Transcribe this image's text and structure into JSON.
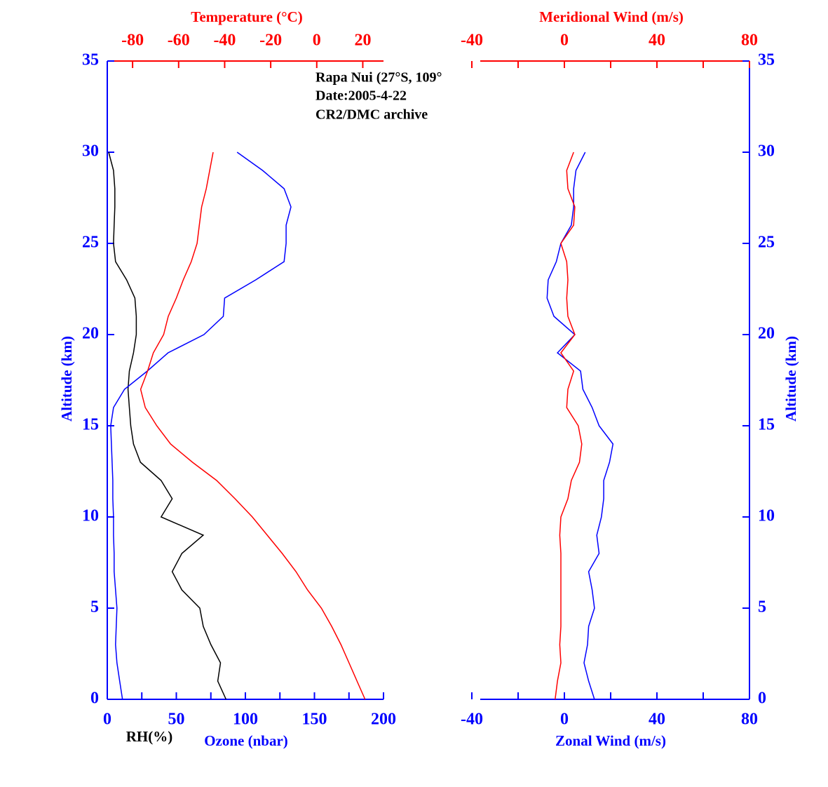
{
  "chart_data": [
    {
      "type": "line",
      "yaxis_side": "left",
      "annotations": [
        "Rapa Nui (27°S, 109°",
        "Date:2005-4-22",
        "CR2/DMC archive"
      ],
      "ylabel": "Altitude (km)",
      "ylim": [
        0,
        35
      ],
      "yticks": [
        0,
        5,
        10,
        15,
        20,
        25,
        30,
        35
      ],
      "xlim": [
        0,
        200
      ],
      "xticks": [
        0,
        50,
        100,
        150,
        200
      ],
      "xminorticks": [
        25,
        75,
        125,
        175
      ],
      "x2lim": [
        -91,
        29
      ],
      "x2ticks": [
        -80,
        -60,
        -40,
        -20,
        0,
        20
      ],
      "altitude": [
        0,
        1,
        2,
        3,
        4,
        5,
        6,
        7,
        8,
        9,
        10,
        11,
        12,
        13,
        14,
        15,
        16,
        17,
        18,
        19,
        20,
        21,
        22,
        23,
        24,
        25,
        26,
        27,
        28,
        29,
        30
      ],
      "series": [
        {
          "name": "RH(%)",
          "color": "#000000",
          "axis": "x",
          "values": [
            86,
            80,
            82,
            75,
            69.5,
            67,
            54,
            47,
            54,
            69.5,
            39,
            47,
            39,
            24,
            19,
            17,
            16,
            15,
            16,
            19,
            21,
            21,
            20,
            14,
            6,
            4.5,
            5,
            5.5,
            5.5,
            4.5,
            1
          ]
        },
        {
          "name": "Ozone (nbar)",
          "color": "#0000ff",
          "axis": "x",
          "values": [
            11,
            9,
            7,
            6,
            6.5,
            7,
            6,
            5,
            5,
            4.5,
            4.5,
            4,
            4,
            3.5,
            3,
            2.5,
            4.5,
            12.5,
            29,
            44,
            70,
            84,
            85,
            107.5,
            128,
            129.5,
            129.5,
            133,
            128,
            112.5,
            94
          ]
        },
        {
          "name": "Temperature (°C)",
          "color": "#ff0000",
          "axis": "x2",
          "values": [
            21,
            17.5,
            14,
            10.5,
            6.5,
            2,
            -4,
            -9,
            -15,
            -21.5,
            -28,
            -35.5,
            -43.5,
            -54,
            -63.5,
            -69.5,
            -74.5,
            -76.5,
            -73.5,
            -71,
            -66.5,
            -64.5,
            -61,
            -58,
            -54.5,
            -52,
            -51,
            -50,
            -48,
            -46.5,
            -45
          ]
        }
      ]
    },
    {
      "type": "line",
      "yaxis_side": "right",
      "ylabel": "Altitude (km)",
      "ylim": [
        0,
        35
      ],
      "yticks": [
        0,
        5,
        10,
        15,
        20,
        25,
        30,
        35
      ],
      "xlim": [
        -40,
        80
      ],
      "xticks": [
        -40,
        0,
        40,
        80
      ],
      "xminorticks": [
        -20,
        20,
        60
      ],
      "x2lim": [
        -40,
        80
      ],
      "x2ticks": [
        -40,
        0,
        40,
        80
      ],
      "x2minorticks": [
        -20,
        20,
        60
      ],
      "altitude": [
        0,
        1,
        2,
        3,
        4,
        5,
        6,
        7,
        8,
        9,
        10,
        11,
        12,
        13,
        14,
        15,
        16,
        17,
        18,
        19,
        20,
        21,
        22,
        23,
        24,
        25,
        26,
        27,
        28,
        29,
        30
      ],
      "series": [
        {
          "name": "Zonal Wind (m/s)",
          "color": "#0000ff",
          "axis": "x",
          "values": [
            13,
            10.5,
            8.5,
            10,
            10.5,
            13,
            12,
            10.5,
            15,
            14,
            16,
            17,
            17,
            19.5,
            21,
            15,
            12,
            8,
            7,
            -3,
            4.5,
            -4.5,
            -7.5,
            -7,
            -3.5,
            -1.5,
            3,
            4,
            4,
            5,
            9
          ]
        },
        {
          "name": "Meridional Wind (m/s)",
          "color": "#ff0000",
          "axis": "x2",
          "values": [
            -4,
            -3,
            -1.5,
            -2,
            -1.5,
            -1.5,
            -1.5,
            -1.5,
            -1.5,
            -2,
            -1.5,
            1.5,
            3,
            6.5,
            7.5,
            6,
            1,
            1.5,
            4,
            -1.5,
            4.5,
            1.5,
            1,
            1.5,
            1,
            -1.5,
            4,
            4.5,
            1.5,
            1,
            4
          ]
        }
      ]
    }
  ]
}
